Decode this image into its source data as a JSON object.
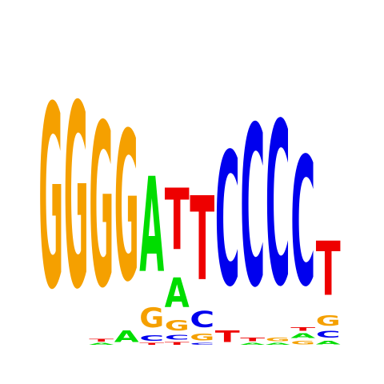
{
  "alphabet": [
    "A",
    "C",
    "G",
    "T"
  ],
  "colors": {
    "A": "#00dd00",
    "C": "#0000ee",
    "G": "#f5a000",
    "T": "#ee0000"
  },
  "columns": [
    [
      {
        "l": "G",
        "h": 1.96
      }
    ],
    [
      {
        "l": "G",
        "h": 1.97
      }
    ],
    [
      {
        "l": "A",
        "h": 0.02
      },
      {
        "l": "T",
        "h": 0.03
      },
      {
        "l": "G",
        "h": 1.75
      }
    ],
    [
      {
        "l": "A",
        "h": 0.12
      },
      {
        "l": "G",
        "h": 1.6
      }
    ],
    [
      {
        "l": "T",
        "h": 0.02
      },
      {
        "l": "C",
        "h": 0.06
      },
      {
        "l": "G",
        "h": 0.21
      },
      {
        "l": "A",
        "h": 1.02
      }
    ],
    [
      {
        "l": "T",
        "h": 0.03
      },
      {
        "l": "C",
        "h": 0.05
      },
      {
        "l": "G",
        "h": 0.11
      },
      {
        "l": "A",
        "h": 0.32
      },
      {
        "l": "T",
        "h": 0.66
      }
    ],
    [
      {
        "l": "C",
        "h": 0.02
      },
      {
        "l": "G",
        "h": 0.07
      },
      {
        "l": "C",
        "h": 0.17
      },
      {
        "l": "T",
        "h": 0.9
      }
    ],
    [
      {
        "l": "T",
        "h": 0.12
      },
      {
        "l": "C",
        "h": 1.43
      }
    ],
    [
      {
        "l": "A",
        "h": 0.02
      },
      {
        "l": "T",
        "h": 0.04
      },
      {
        "l": "C",
        "h": 1.72
      }
    ],
    [
      {
        "l": "A",
        "h": 0.02
      },
      {
        "l": "G",
        "h": 0.04
      },
      {
        "l": "C",
        "h": 1.75
      }
    ],
    [
      {
        "l": "G",
        "h": 0.04
      },
      {
        "l": "A",
        "h": 0.05
      },
      {
        "l": "T",
        "h": 0.04
      },
      {
        "l": "C",
        "h": 1.38
      }
    ],
    [
      {
        "l": "A",
        "h": 0.04
      },
      {
        "l": "C",
        "h": 0.07
      },
      {
        "l": "G",
        "h": 0.11
      },
      {
        "l": "T",
        "h": 0.58
      }
    ]
  ]
}
